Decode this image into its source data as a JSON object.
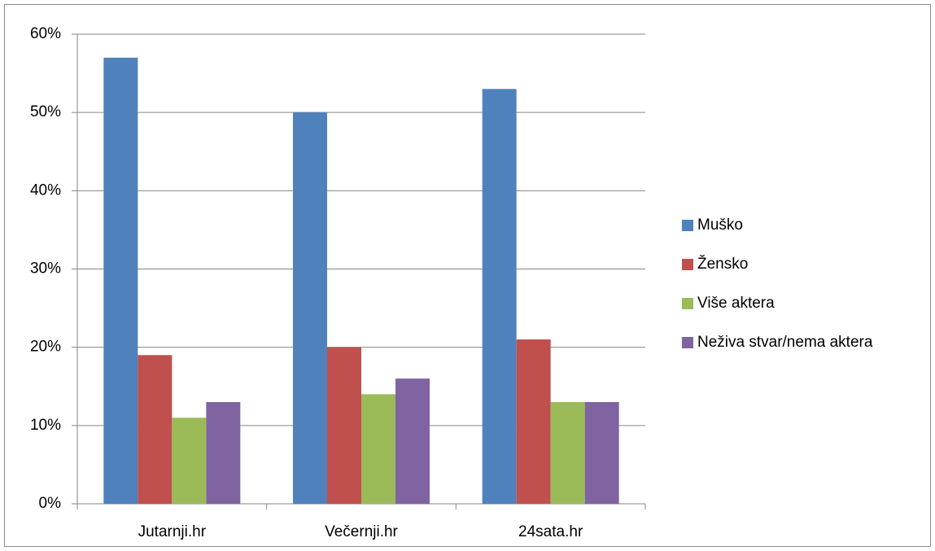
{
  "chart_data": {
    "type": "bar",
    "categories": [
      "Jutarnji.hr",
      "Večernji.hr",
      "24sata.hr"
    ],
    "series": [
      {
        "name": "Muško",
        "color": "#4f81bd",
        "values": [
          57,
          50,
          53
        ]
      },
      {
        "name": "Žensko",
        "color": "#c0504d",
        "values": [
          19,
          20,
          21
        ]
      },
      {
        "name": "Više aktera",
        "color": "#9bbb59",
        "values": [
          11,
          14,
          13
        ]
      },
      {
        "name": "Neživa stvar/nema aktera",
        "color": "#8064a2",
        "values": [
          13,
          16,
          13
        ]
      }
    ],
    "ylim": [
      0,
      60
    ],
    "yticks": [
      {
        "value": 0,
        "label": "0%"
      },
      {
        "value": 10,
        "label": "10%"
      },
      {
        "value": 20,
        "label": "20%"
      },
      {
        "value": 30,
        "label": "30%"
      },
      {
        "value": 40,
        "label": "40%"
      },
      {
        "value": 50,
        "label": "50%"
      },
      {
        "value": 60,
        "label": "60%"
      }
    ],
    "grid": true,
    "legend": "right"
  }
}
